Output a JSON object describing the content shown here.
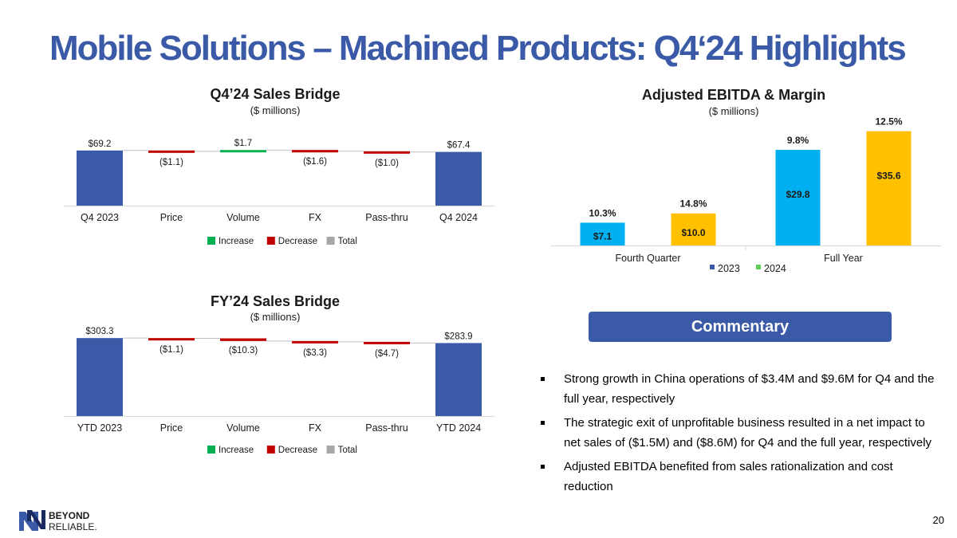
{
  "page": {
    "title": "Mobile Solutions – Machined Products: Q4‘24 Highlights",
    "page_number": "20",
    "logo": {
      "line1": "BEYOND",
      "line2": "RELIABLE."
    },
    "colors": {
      "increase": "#00b050",
      "decrease": "#c00000",
      "total": "#3a5aa8",
      "bar2023": "#00b0f0",
      "bar2024": "#ffc000",
      "accent": "#3a5aa8"
    }
  },
  "commentary": {
    "title": "Commentary",
    "bullets": [
      "Strong growth in China operations of $3.4M and $9.6M for Q4 and the full year, respectively",
      "The strategic exit of unprofitable business resulted in a net impact to net sales of ($1.5M) and ($8.6M) for Q4 and the full year, respectively",
      "Adjusted EBITDA benefited from sales rationalization and cost reduction"
    ]
  },
  "chart_data": [
    {
      "id": "q4_bridge",
      "type": "bar",
      "subtype": "waterfall",
      "title": "Q4’24 Sales Bridge",
      "subtitle": "($ millions)",
      "categories": [
        "Q4 2023",
        "Price",
        "Volume",
        "FX",
        "Pass-thru",
        "Q4 2024"
      ],
      "values": [
        69.2,
        -1.1,
        1.7,
        -1.6,
        -1.0,
        67.4
      ],
      "kinds": [
        "total",
        "decrease",
        "increase",
        "decrease",
        "decrease",
        "total"
      ],
      "labels": [
        "$69.2",
        "($1.1)",
        "$1.7",
        "($1.6)",
        "($1.0)",
        "$67.4"
      ],
      "legend": [
        "Increase",
        "Decrease",
        "Total"
      ]
    },
    {
      "id": "fy_bridge",
      "type": "bar",
      "subtype": "waterfall",
      "title": "FY’24 Sales Bridge",
      "subtitle": "($ millions)",
      "categories": [
        "YTD 2023",
        "Price",
        "Volume",
        "FX",
        "Pass-thru",
        "YTD 2024"
      ],
      "values": [
        303.3,
        -1.1,
        -10.3,
        -3.3,
        -4.7,
        283.9
      ],
      "kinds": [
        "total",
        "decrease",
        "decrease",
        "decrease",
        "decrease",
        "total"
      ],
      "labels": [
        "$303.3",
        "($1.1)",
        "($10.3)",
        "($3.3)",
        "($4.7)",
        "$283.9"
      ],
      "legend": [
        "Increase",
        "Decrease",
        "Total"
      ]
    },
    {
      "id": "ebitda",
      "type": "bar",
      "title": "Adjusted EBITDA & Margin",
      "subtitle": "($ millions)",
      "categories": [
        "Fourth Quarter",
        "Full Year"
      ],
      "series": [
        {
          "name": "2023",
          "values": [
            7.1,
            29.8
          ],
          "labels": [
            "$7.1",
            "$29.8"
          ],
          "margins": [
            "10.3%",
            "9.8%"
          ]
        },
        {
          "name": "2024",
          "values": [
            10.0,
            35.6
          ],
          "labels": [
            "$10.0",
            "$35.6"
          ],
          "margins": [
            "14.8%",
            "12.5%"
          ]
        }
      ],
      "legend": [
        "2023",
        "2024"
      ],
      "legend_colors": [
        "#3a5aa8",
        "#5ad05a"
      ]
    }
  ]
}
